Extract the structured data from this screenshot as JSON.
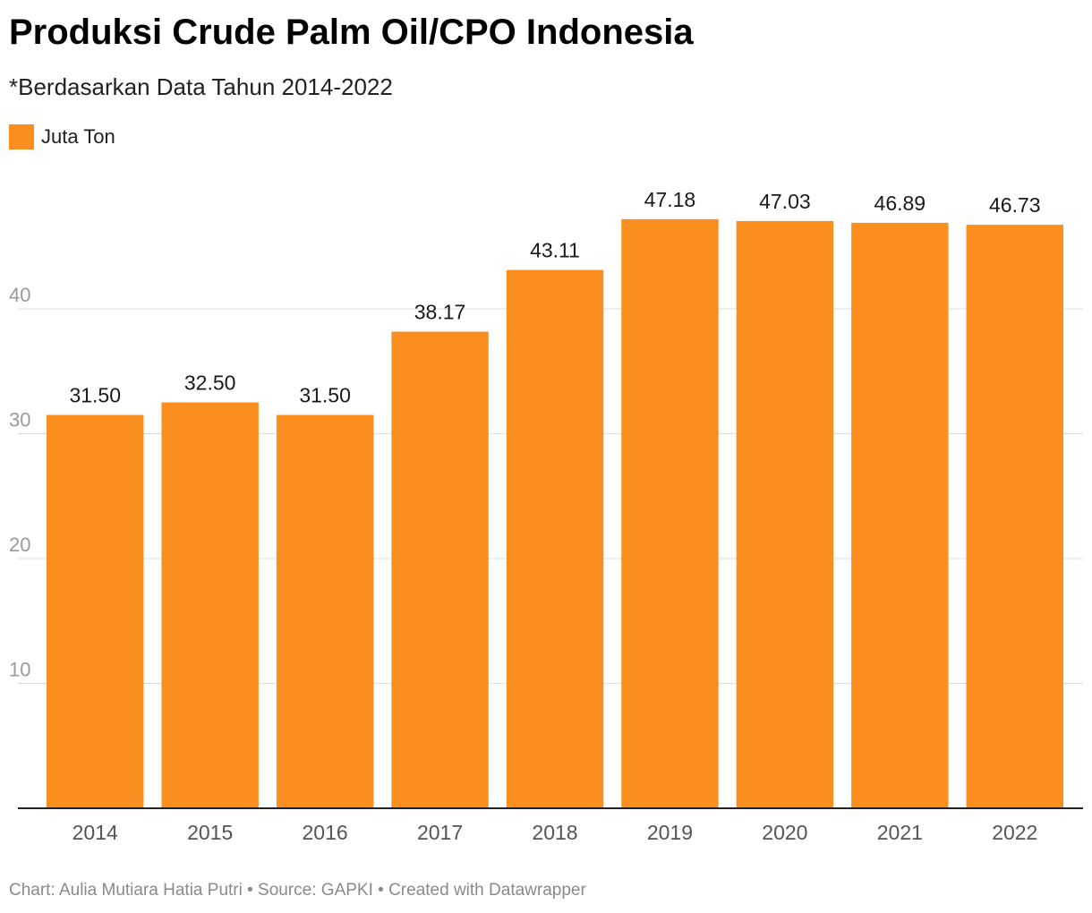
{
  "chart_data": {
    "type": "bar",
    "title": "Produksi Crude Palm Oil/CPO Indonesia",
    "subtitle": "*Berdasarkan Data Tahun 2014-2022",
    "categories": [
      "2014",
      "2015",
      "2016",
      "2017",
      "2018",
      "2019",
      "2020",
      "2021",
      "2022"
    ],
    "series": [
      {
        "name": "Juta Ton",
        "values": [
          31.5,
          32.5,
          31.5,
          38.17,
          43.11,
          47.18,
          47.03,
          46.89,
          46.73
        ],
        "value_labels": [
          "31.50",
          "32.50",
          "31.50",
          "38.17",
          "43.11",
          "47.18",
          "47.03",
          "46.89",
          "46.73"
        ],
        "color": "#fa8f20"
      }
    ],
    "xlabel": "",
    "ylabel": "",
    "ylim": [
      0,
      50
    ],
    "yticks": [
      10,
      20,
      30,
      40
    ],
    "ytick_labels": [
      "10",
      "20",
      "30",
      "40"
    ],
    "grid": true,
    "legend": "top-left"
  },
  "footer": {
    "text": "Chart: Aulia Mutiara Hatia Putri • Source: GAPKI • Created with Datawrapper"
  }
}
